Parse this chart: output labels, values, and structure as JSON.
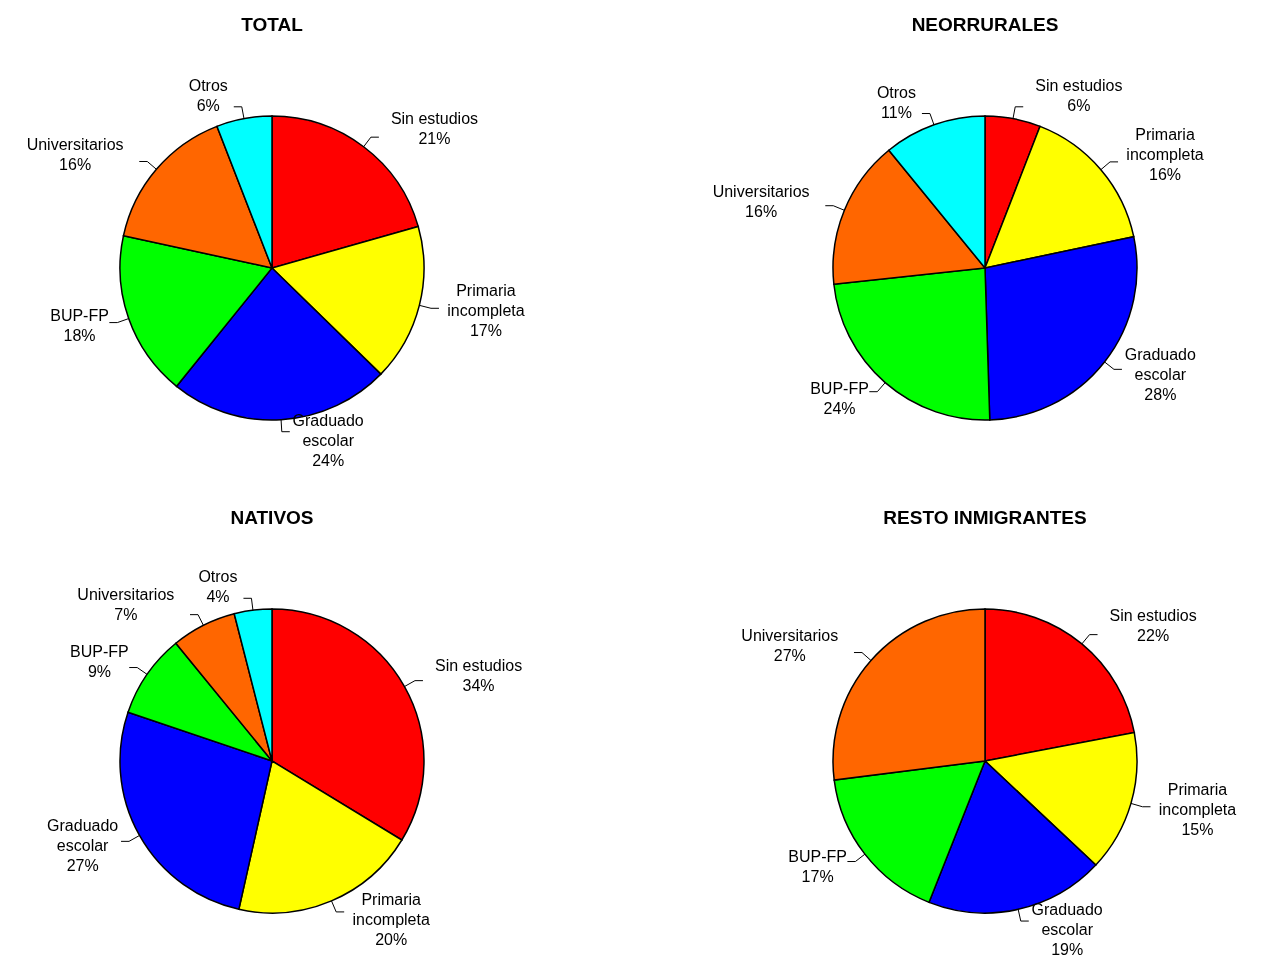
{
  "chart_data": [
    {
      "type": "pie",
      "title": "TOTAL",
      "categories": [
        "Sin estudios",
        "Primaria incompleta",
        "Graduado escolar",
        "BUP-FP",
        "Universitarios",
        "Otros"
      ],
      "values": [
        20.6,
        16.7,
        23.5,
        17.6,
        15.7,
        5.9
      ],
      "value_labels": [
        "21%",
        "17%",
        "24%",
        "18%",
        "16%",
        "6%"
      ],
      "colors": [
        "#ff0000",
        "#ffff00",
        "#0000ff",
        "#00ff00",
        "#ff6600",
        "#00ffff"
      ]
    },
    {
      "type": "pie",
      "title": "NEORRURALES",
      "categories": [
        "Sin estudios",
        "Primaria incompleta",
        "Graduado escolar",
        "BUP-FP",
        "Universitarios",
        "Otros"
      ],
      "values": [
        5.9,
        15.8,
        27.8,
        23.8,
        15.8,
        10.9
      ],
      "value_labels": [
        "6%",
        "16%",
        "28%",
        "24%",
        "16%",
        "11%"
      ],
      "colors": [
        "#ff0000",
        "#ffff00",
        "#0000ff",
        "#00ff00",
        "#ff6600",
        "#00ffff"
      ]
    },
    {
      "type": "pie",
      "title": "NATIVOS",
      "categories": [
        "Sin estudios",
        "Primaria incompleta",
        "Graduado escolar",
        "BUP-FP",
        "Universitarios",
        "Otros"
      ],
      "values": [
        33.7,
        19.8,
        26.7,
        8.9,
        6.9,
        4.0
      ],
      "value_labels": [
        "34%",
        "20%",
        "27%",
        "9%",
        "7%",
        "4%"
      ],
      "colors": [
        "#ff0000",
        "#ffff00",
        "#0000ff",
        "#00ff00",
        "#ff6600",
        "#00ffff"
      ]
    },
    {
      "type": "pie",
      "title": "RESTO INMIGRANTES",
      "categories": [
        "Sin estudios",
        "Primaria incompleta",
        "Graduado escolar",
        "BUP-FP",
        "Universitarios"
      ],
      "values": [
        22,
        15,
        19,
        17,
        27
      ],
      "value_labels": [
        "22%",
        "15%",
        "19%",
        "17%",
        "27%"
      ],
      "colors": [
        "#ff0000",
        "#ffff00",
        "#0000ff",
        "#00ff00",
        "#ff6600"
      ]
    }
  ]
}
